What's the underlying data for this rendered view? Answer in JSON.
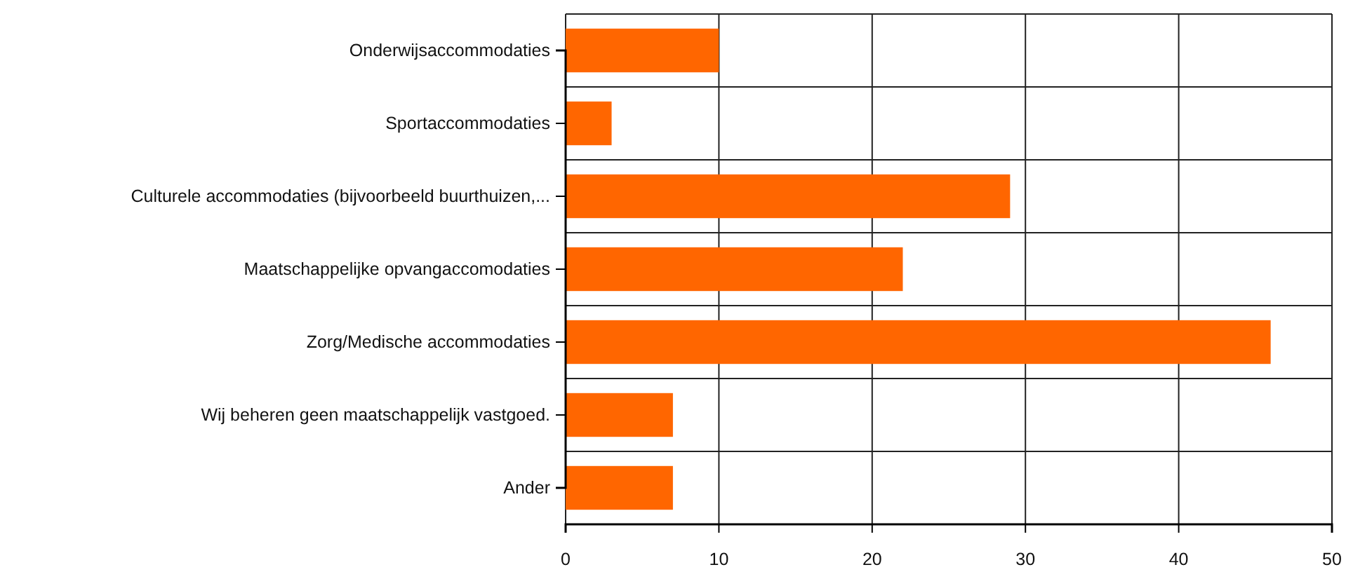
{
  "chart_data": {
    "type": "bar",
    "orientation": "horizontal",
    "categories": [
      "Onderwijsaccommodaties",
      "Sportaccommodaties",
      "Culturele accommodaties (bijvoorbeeld buurthuizen,...",
      "Maatschappelijke opvangaccomodaties",
      "Zorg/Medische accommodaties",
      "Wij beheren geen maatschappelijk vastgoed.",
      "Ander"
    ],
    "values": [
      10,
      3,
      29,
      22,
      46,
      7,
      7
    ],
    "color": "#ff6600",
    "xlim": [
      0,
      50
    ],
    "xticks": [
      0,
      10,
      20,
      30,
      40,
      50
    ],
    "grid": true
  }
}
